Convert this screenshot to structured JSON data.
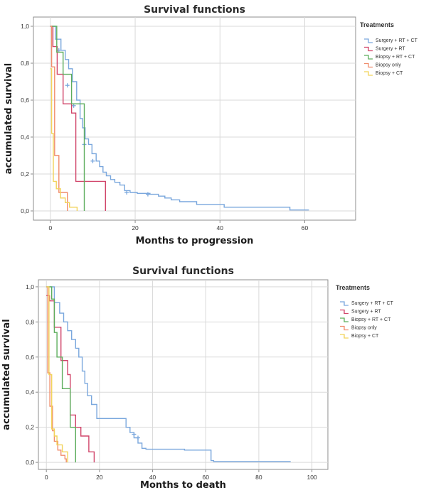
{
  "chart_data": [
    {
      "type": "line",
      "step": true,
      "title": "Survival functions",
      "xlabel": "Months to progression",
      "ylabel": "accumulated survival",
      "xlim": [
        -4,
        72
      ],
      "ylim": [
        -0.05,
        1.05
      ],
      "x_ticks": [
        "0",
        "20",
        "40",
        "60"
      ],
      "y_ticks": [
        "0,0",
        "0,2",
        "0,4",
        "0,6",
        "0,8",
        "1,0"
      ],
      "grid": true,
      "legend_title": "Treatments",
      "legend_position": "right",
      "series": [
        {
          "name": "Surgery + RT + CT",
          "color": "#7aa7dd",
          "x": [
            0,
            1.2,
            2.5,
            3.5,
            4.3,
            5.2,
            6.2,
            7,
            7.6,
            8.2,
            9,
            9.8,
            10.8,
            11.6,
            12.4,
            13.2,
            14.2,
            15.2,
            16.4,
            17.5,
            18.8,
            20.5,
            23.5,
            25.5,
            27,
            28.5,
            30.5,
            34.5,
            41,
            56.5,
            61
          ],
          "y": [
            1,
            0.93,
            0.87,
            0.82,
            0.77,
            0.7,
            0.6,
            0.5,
            0.45,
            0.39,
            0.36,
            0.31,
            0.27,
            0.24,
            0.21,
            0.19,
            0.17,
            0.155,
            0.14,
            0.11,
            0.1,
            0.095,
            0.09,
            0.08,
            0.07,
            0.06,
            0.05,
            0.035,
            0.02,
            0.005,
            0.005
          ],
          "censor_x": [
            2,
            4,
            5.5,
            8,
            10,
            18,
            23
          ],
          "censor_y": [
            0.87,
            0.68,
            0.57,
            0.36,
            0.27,
            0.1,
            0.09
          ]
        },
        {
          "name": "Surgery + RT",
          "color": "#d1456a",
          "x": [
            0,
            0.6,
            1.6,
            3,
            5,
            6,
            11,
            13,
            13
          ],
          "y": [
            1,
            0.89,
            0.74,
            0.58,
            0.53,
            0.16,
            0.16,
            0.06,
            0
          ]
        },
        {
          "name": "Biopsy + RT + CT",
          "color": "#5cad5c",
          "x": [
            0,
            1.5,
            3,
            5,
            8,
            8
          ],
          "y": [
            1,
            0.86,
            0.74,
            0.58,
            0.16,
            0
          ]
        },
        {
          "name": "Biopsy only",
          "color": "#f08c6c",
          "x": [
            0,
            0.3,
            1,
            2,
            4,
            4
          ],
          "y": [
            1,
            0.78,
            0.3,
            0.1,
            0.02,
            0
          ]
        },
        {
          "name": "Biopsy + CT",
          "color": "#f2d35a",
          "x": [
            0,
            0.3,
            0.7,
            1.4,
            2.4,
            3.5,
            4.5,
            6.3,
            6.3
          ],
          "y": [
            0.77,
            0.42,
            0.16,
            0.12,
            0.07,
            0.045,
            0.02,
            0.01,
            0
          ]
        }
      ]
    },
    {
      "type": "line",
      "step": true,
      "title": "Survival functions",
      "xlabel": "Months to death",
      "ylabel": "accumulated survival",
      "xlim": [
        -3,
        106
      ],
      "ylim": [
        -0.04,
        1.04
      ],
      "x_ticks": [
        "0",
        "20",
        "40",
        "60",
        "80",
        "100"
      ],
      "y_ticks": [
        "0,0",
        "0,2",
        "0,4",
        "0,6",
        "0,8",
        "1,0"
      ],
      "grid": true,
      "legend_title": "Treatments",
      "legend_position": "right",
      "series": [
        {
          "name": "Surgery + RT + CT",
          "color": "#7aa7dd",
          "x": [
            0,
            3,
            5,
            6.5,
            8,
            9.5,
            11,
            12.2,
            13.5,
            14.5,
            15.5,
            17,
            19,
            26,
            30,
            31.5,
            33,
            34.5,
            36,
            37.5,
            43,
            47,
            52,
            62,
            63,
            92
          ],
          "y": [
            1,
            0.91,
            0.85,
            0.8,
            0.75,
            0.7,
            0.65,
            0.6,
            0.52,
            0.45,
            0.38,
            0.33,
            0.25,
            0.25,
            0.2,
            0.17,
            0.14,
            0.11,
            0.08,
            0.075,
            0.075,
            0.075,
            0.07,
            0.01,
            0.005,
            0.005
          ],
          "censor_x": [
            33,
            34.5
          ],
          "censor_y": [
            0.16,
            0.14
          ]
        },
        {
          "name": "Surgery + RT",
          "color": "#d1456a",
          "x": [
            0,
            1.2,
            3,
            5.5,
            8,
            9,
            11,
            13,
            16,
            18,
            18
          ],
          "y": [
            0.95,
            0.92,
            0.77,
            0.58,
            0.5,
            0.27,
            0.2,
            0.15,
            0.06,
            0.03,
            0
          ]
        },
        {
          "name": "Biopsy + RT + CT",
          "color": "#5cad5c",
          "x": [
            0,
            2,
            3,
            4,
            6,
            9,
            11,
            11
          ],
          "y": [
            1,
            0.93,
            0.74,
            0.6,
            0.42,
            0.2,
            0.1,
            0
          ]
        },
        {
          "name": "Biopsy only",
          "color": "#f08c6c",
          "x": [
            0,
            0.5,
            1.3,
            2.3,
            3,
            4.3,
            5.5,
            7,
            7.5,
            7.5
          ],
          "y": [
            1,
            0.51,
            0.32,
            0.18,
            0.12,
            0.07,
            0.04,
            0.02,
            0.02,
            0
          ]
        },
        {
          "name": "Biopsy + CT",
          "color": "#f2d35a",
          "x": [
            0,
            1,
            2,
            3,
            4,
            6,
            8,
            8
          ],
          "y": [
            1,
            0.5,
            0.19,
            0.15,
            0.1,
            0.06,
            0.02,
            0
          ]
        }
      ]
    }
  ]
}
